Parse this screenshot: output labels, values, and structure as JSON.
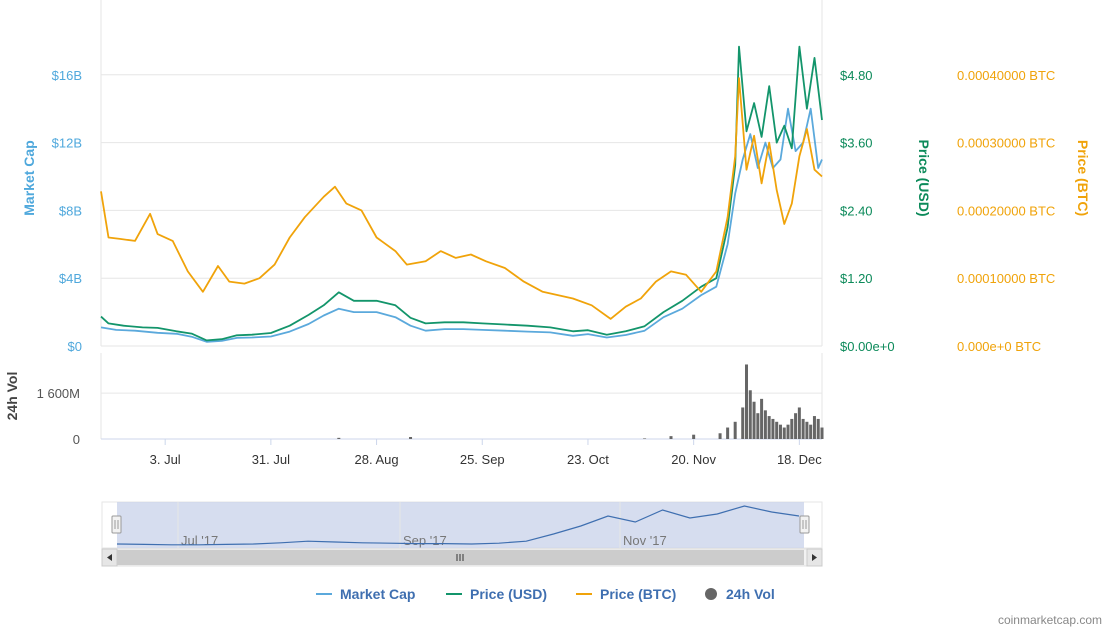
{
  "chart_data": {
    "type": "line",
    "x_range": [
      "2017-06-16",
      "2017-12-24"
    ],
    "x_ticks": [
      "3. Jul",
      "31. Jul",
      "28. Aug",
      "25. Sep",
      "23. Oct",
      "20. Nov",
      "18. Dec"
    ],
    "axes": {
      "market_cap": {
        "title": "Market Cap",
        "ticks": [
          "$0",
          "$4B",
          "$8B",
          "$12B",
          "$16B"
        ],
        "range": [
          0,
          20000000000
        ]
      },
      "price_usd": {
        "title": "Price (USD)",
        "ticks": [
          "$0.00e+0",
          "$1.20",
          "$2.40",
          "$3.60",
          "$4.80"
        ],
        "range": [
          0,
          6
        ]
      },
      "price_btc": {
        "title": "Price (BTC)",
        "ticks": [
          "0.000e+0 BTC",
          "0.00010000 BTC",
          "0.00020000 BTC",
          "0.00030000 BTC",
          "0.00040000 BTC"
        ],
        "range": [
          0,
          0.0005
        ]
      },
      "volume": {
        "title": "24h Vol",
        "ticks": [
          "0",
          "1 600M"
        ],
        "range": [
          0,
          3000000000
        ]
      }
    },
    "series": [
      {
        "name": "Market Cap",
        "color": "#5ba9dc",
        "axis": "market_cap",
        "x": [
          "2017-06-16",
          "2017-06-20",
          "2017-06-25",
          "2017-07-01",
          "2017-07-06",
          "2017-07-10",
          "2017-07-14",
          "2017-07-18",
          "2017-07-22",
          "2017-07-26",
          "2017-07-31",
          "2017-08-05",
          "2017-08-10",
          "2017-08-14",
          "2017-08-18",
          "2017-08-22",
          "2017-08-28",
          "2017-09-02",
          "2017-09-06",
          "2017-09-10",
          "2017-09-15",
          "2017-09-20",
          "2017-09-25",
          "2017-10-01",
          "2017-10-07",
          "2017-10-13",
          "2017-10-19",
          "2017-10-23",
          "2017-10-28",
          "2017-11-02",
          "2017-11-07",
          "2017-11-12",
          "2017-11-17",
          "2017-11-22",
          "2017-11-26",
          "2017-11-29",
          "2017-12-01",
          "2017-12-03",
          "2017-12-05",
          "2017-12-07",
          "2017-12-09",
          "2017-12-11",
          "2017-12-13",
          "2017-12-15",
          "2017-12-17",
          "2017-12-19",
          "2017-12-21",
          "2017-12-23",
          "2017-12-24"
        ],
        "values": [
          1100000000,
          950000000,
          900000000,
          780000000,
          720000000,
          550000000,
          250000000,
          300000000,
          480000000,
          500000000,
          560000000,
          850000000,
          1300000000,
          1800000000,
          2200000000,
          2000000000,
          2000000000,
          1700000000,
          1200000000,
          900000000,
          1000000000,
          1000000000,
          950000000,
          900000000,
          850000000,
          800000000,
          600000000,
          700000000,
          500000000,
          650000000,
          900000000,
          1700000000,
          2200000000,
          3000000000,
          3500000000,
          6000000000,
          9000000000,
          11000000000,
          12500000000,
          10500000000,
          12000000000,
          10500000000,
          11000000000,
          14000000000,
          11500000000,
          12000000000,
          14000000000,
          10500000000,
          11000000000
        ]
      },
      {
        "name": "Price (USD)",
        "color": "#13956b",
        "axis": "price_usd",
        "x": [
          "2017-06-16",
          "2017-06-18",
          "2017-06-22",
          "2017-06-27",
          "2017-07-01",
          "2017-07-06",
          "2017-07-10",
          "2017-07-14",
          "2017-07-18",
          "2017-07-22",
          "2017-07-26",
          "2017-07-31",
          "2017-08-05",
          "2017-08-10",
          "2017-08-14",
          "2017-08-18",
          "2017-08-22",
          "2017-08-28",
          "2017-09-02",
          "2017-09-06",
          "2017-09-10",
          "2017-09-15",
          "2017-09-20",
          "2017-09-25",
          "2017-10-01",
          "2017-10-07",
          "2017-10-13",
          "2017-10-19",
          "2017-10-23",
          "2017-10-28",
          "2017-11-02",
          "2017-11-07",
          "2017-11-12",
          "2017-11-17",
          "2017-11-22",
          "2017-11-26",
          "2017-11-29",
          "2017-12-01",
          "2017-12-02",
          "2017-12-04",
          "2017-12-06",
          "2017-12-08",
          "2017-12-10",
          "2017-12-12",
          "2017-12-14",
          "2017-12-16",
          "2017-12-18",
          "2017-12-20",
          "2017-12-22",
          "2017-12-24"
        ],
        "values": [
          0.52,
          0.4,
          0.36,
          0.33,
          0.32,
          0.26,
          0.22,
          0.1,
          0.12,
          0.19,
          0.2,
          0.23,
          0.36,
          0.55,
          0.72,
          0.95,
          0.8,
          0.8,
          0.72,
          0.5,
          0.4,
          0.42,
          0.42,
          0.4,
          0.38,
          0.36,
          0.33,
          0.26,
          0.28,
          0.2,
          0.26,
          0.35,
          0.6,
          0.8,
          1.05,
          1.2,
          2.1,
          3.2,
          5.3,
          3.8,
          4.3,
          3.7,
          4.6,
          3.6,
          3.9,
          3.5,
          5.3,
          4.2,
          5.1,
          4.0
        ]
      },
      {
        "name": "Price (BTC)",
        "color": "#f0a30a",
        "axis": "price_btc",
        "x": [
          "2017-06-16",
          "2017-06-18",
          "2017-06-21",
          "2017-06-25",
          "2017-06-29",
          "2017-07-01",
          "2017-07-05",
          "2017-07-09",
          "2017-07-13",
          "2017-07-17",
          "2017-07-20",
          "2017-07-24",
          "2017-07-28",
          "2017-08-01",
          "2017-08-05",
          "2017-08-09",
          "2017-08-14",
          "2017-08-17",
          "2017-08-20",
          "2017-08-24",
          "2017-08-28",
          "2017-09-02",
          "2017-09-05",
          "2017-09-10",
          "2017-09-14",
          "2017-09-18",
          "2017-09-22",
          "2017-09-26",
          "2017-10-01",
          "2017-10-06",
          "2017-10-11",
          "2017-10-15",
          "2017-10-19",
          "2017-10-24",
          "2017-10-29",
          "2017-11-02",
          "2017-11-06",
          "2017-11-10",
          "2017-11-14",
          "2017-11-18",
          "2017-11-22",
          "2017-11-26",
          "2017-11-29",
          "2017-12-01",
          "2017-12-02",
          "2017-12-04",
          "2017-12-06",
          "2017-12-08",
          "2017-12-10",
          "2017-12-12",
          "2017-12-14",
          "2017-12-16",
          "2017-12-18",
          "2017-12-20",
          "2017-12-22",
          "2017-12-24"
        ],
        "values": [
          0.000228,
          0.00016,
          0.000158,
          0.000155,
          0.000195,
          0.000165,
          0.000155,
          0.00011,
          8e-05,
          0.000118,
          9.5e-05,
          9.2e-05,
          0.0001,
          0.00012,
          0.00016,
          0.00019,
          0.00022,
          0.000235,
          0.00021,
          0.0002,
          0.00016,
          0.00014,
          0.00012,
          0.000125,
          0.00014,
          0.00013,
          0.000135,
          0.000125,
          0.000115,
          9.5e-05,
          8e-05,
          7.5e-05,
          7e-05,
          6e-05,
          4e-05,
          5.8e-05,
          7e-05,
          9.5e-05,
          0.00011,
          0.000105,
          8e-05,
          0.00011,
          0.00019,
          0.00028,
          0.000395,
          0.00026,
          0.00031,
          0.00024,
          0.0003,
          0.00023,
          0.00018,
          0.00021,
          0.00028,
          0.00032,
          0.00026,
          0.00025
        ]
      },
      {
        "name": "24h Vol",
        "color": "#666666",
        "axis": "volume",
        "kind": "column",
        "x": [
          "2017-08-18",
          "2017-09-06",
          "2017-11-07",
          "2017-11-14",
          "2017-11-20",
          "2017-11-27",
          "2017-11-29",
          "2017-12-01",
          "2017-12-03",
          "2017-12-04",
          "2017-12-05",
          "2017-12-06",
          "2017-12-07",
          "2017-12-08",
          "2017-12-09",
          "2017-12-10",
          "2017-12-11",
          "2017-12-12",
          "2017-12-13",
          "2017-12-14",
          "2017-12-15",
          "2017-12-16",
          "2017-12-17",
          "2017-12-18",
          "2017-12-19",
          "2017-12-20",
          "2017-12-21",
          "2017-12-22",
          "2017-12-23",
          "2017-12-24"
        ],
        "values": [
          40000000,
          70000000,
          20000000,
          100000000,
          150000000,
          200000000,
          400000000,
          600000000,
          1100000000,
          2600000000,
          1700000000,
          1300000000,
          900000000,
          1400000000,
          1000000000,
          800000000,
          700000000,
          600000000,
          500000000,
          400000000,
          500000000,
          700000000,
          900000000,
          1100000000,
          700000000,
          600000000,
          500000000,
          800000000,
          700000000,
          400000000
        ]
      }
    ],
    "navigator": {
      "labels": [
        "Jul '17",
        "Sep '17",
        "Nov '17"
      ],
      "values": [
        0.05,
        0.04,
        0.03,
        0.03,
        0.04,
        0.05,
        0.08,
        0.12,
        0.1,
        0.08,
        0.07,
        0.06,
        0.06,
        0.05,
        0.07,
        0.12,
        0.3,
        0.5,
        0.75,
        0.6,
        0.9,
        0.7,
        0.8,
        1.0,
        0.85,
        0.75
      ]
    },
    "legend": {
      "position": "bottom",
      "items": [
        {
          "label": "Market Cap",
          "color": "#5ba9dc",
          "marker": "line"
        },
        {
          "label": "Price (USD)",
          "color": "#13956b",
          "marker": "line"
        },
        {
          "label": "Price (BTC)",
          "color": "#f0a30a",
          "marker": "line"
        },
        {
          "label": "24h Vol",
          "color": "#666666",
          "marker": "circle"
        }
      ]
    },
    "credit": "coinmarketcap.com",
    "grid": true
  }
}
